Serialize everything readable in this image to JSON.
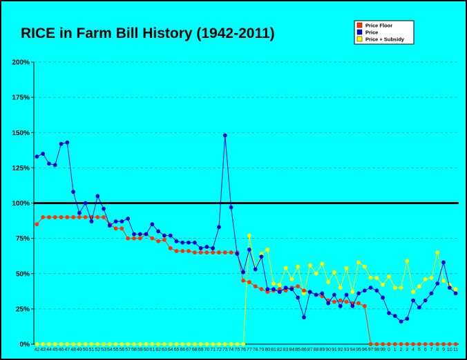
{
  "chart_data": {
    "type": "line",
    "title": "RICE in Farm Bill History (1942-2011)",
    "xlabel": "",
    "ylabel": "",
    "ylim": [
      0,
      200
    ],
    "y_unit": "%",
    "y_ticks": [
      "0%",
      "25%",
      "50%",
      "75%",
      "100%",
      "125%",
      "150%",
      "175%",
      "200%"
    ],
    "reference_line": 100,
    "grid": true,
    "legend_position": "top-right",
    "background_color": "#00ffff",
    "categories": [
      "42",
      "43",
      "44",
      "45",
      "46",
      "47",
      "48",
      "49",
      "50",
      "51",
      "52",
      "53",
      "54",
      "55",
      "56",
      "57",
      "58",
      "59",
      "60",
      "61",
      "62",
      "63",
      "64",
      "65",
      "66",
      "67",
      "68",
      "69",
      "70",
      "71",
      "72",
      "73",
      "74",
      "75",
      "76",
      "77",
      "78",
      "79",
      "80",
      "81",
      "82",
      "83",
      "84",
      "85",
      "86",
      "87",
      "88",
      "89",
      "90",
      "91",
      "92",
      "93",
      "94",
      "95",
      "96",
      "97",
      "98",
      "99",
      "0",
      "1",
      "2",
      "3",
      "4",
      "5",
      "6",
      "7",
      "8",
      "9",
      "10",
      "11"
    ],
    "series": [
      {
        "name": "Price Floor",
        "color": "#ff3300",
        "values": [
          85,
          90,
          90,
          90,
          90,
          90,
          90,
          90,
          90,
          90,
          90,
          90,
          85,
          82,
          82,
          75,
          75,
          75,
          78,
          75,
          73,
          74,
          68,
          66,
          66,
          66,
          65,
          65,
          65,
          65,
          65,
          65,
          65,
          65,
          45,
          44,
          41,
          39,
          37,
          38,
          39,
          38,
          40,
          41,
          38,
          37,
          35,
          34,
          31,
          30,
          31,
          30,
          29,
          29,
          27,
          0,
          0,
          0,
          0,
          0,
          0,
          0,
          0,
          0,
          0,
          0,
          0,
          0,
          0,
          0
        ]
      },
      {
        "name": "Price",
        "color": "#0000cc",
        "values": [
          133,
          135,
          128,
          127,
          142,
          143,
          108,
          93,
          100,
          87,
          105,
          96,
          84,
          87,
          87,
          89,
          78,
          78,
          78,
          85,
          80,
          77,
          77,
          73,
          72,
          72,
          72,
          68,
          69,
          68,
          83,
          148,
          97,
          64,
          51,
          67,
          53,
          62,
          39,
          39,
          37,
          40,
          39,
          33,
          19,
          37,
          35,
          36,
          29,
          35,
          27,
          35,
          27,
          36,
          38,
          40,
          38,
          33,
          22,
          20,
          16,
          18,
          31,
          26,
          31,
          36,
          43,
          58,
          40,
          36
        ]
      },
      {
        "name": "Price + Subsidy",
        "color": "#ffff00",
        "values": [
          0,
          0,
          0,
          0,
          0,
          0,
          0,
          0,
          0,
          0,
          0,
          0,
          0,
          0,
          0,
          0,
          0,
          0,
          0,
          0,
          0,
          0,
          0,
          0,
          0,
          0,
          0,
          0,
          0,
          0,
          0,
          0,
          0,
          0,
          0,
          77,
          53,
          64,
          67,
          43,
          42,
          54,
          46,
          55,
          36,
          56,
          50,
          57,
          44,
          51,
          40,
          54,
          37,
          58,
          55,
          47,
          47,
          42,
          48,
          40,
          40,
          59,
          37,
          41,
          46,
          47,
          65,
          45,
          42,
          39
        ]
      }
    ]
  }
}
